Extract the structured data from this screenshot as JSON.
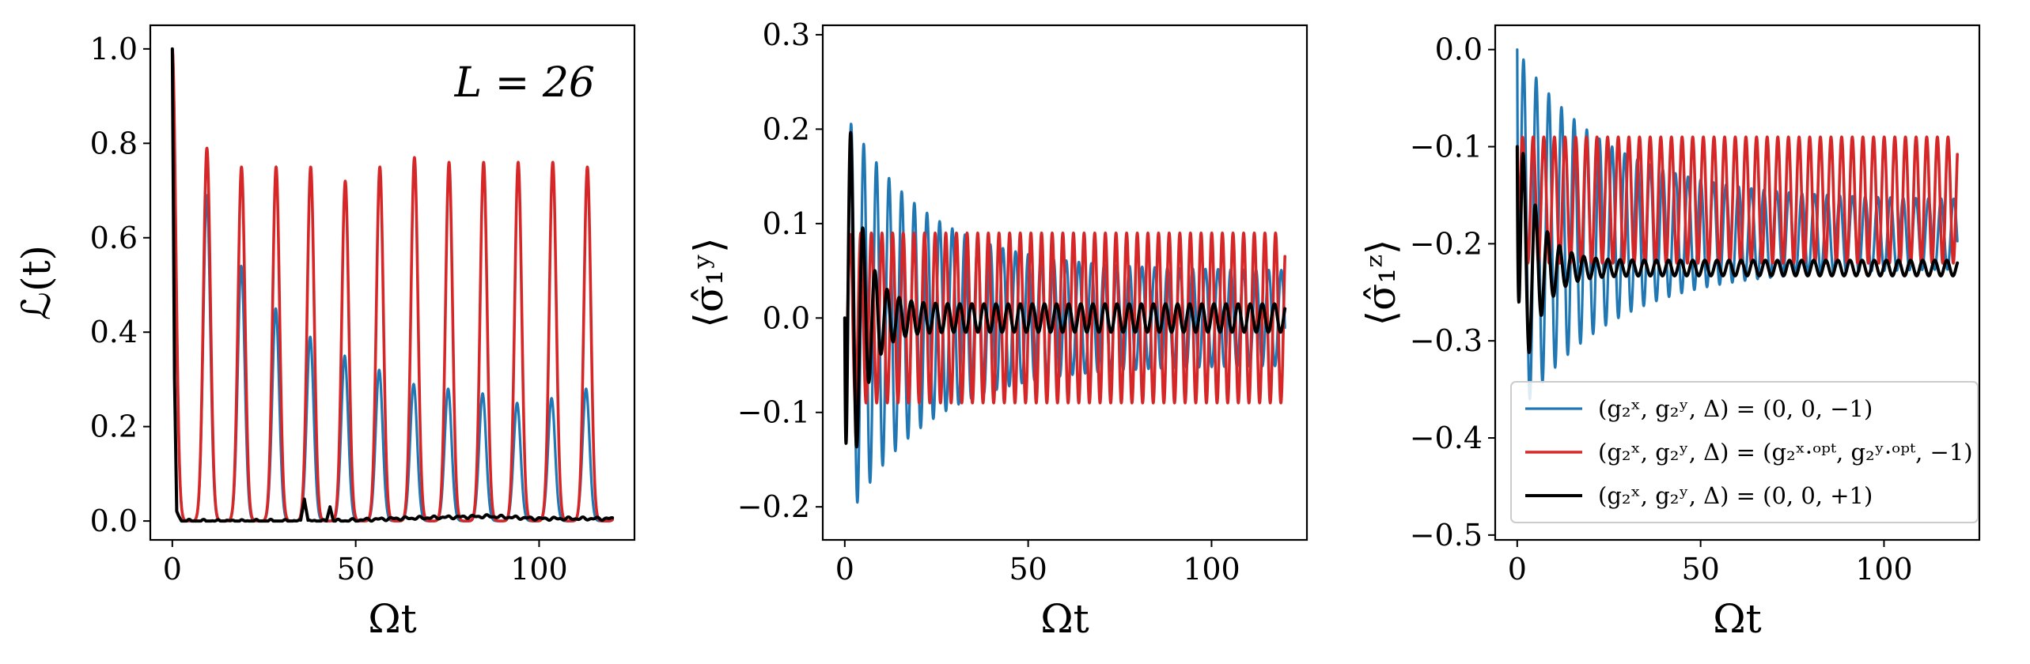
{
  "colors": {
    "blue": "#1f77b4",
    "red": "#d62728",
    "black": "#000000"
  },
  "chart_data": [
    {
      "type": "line",
      "xlabel": "Ωt",
      "ylabel": "ℒ(t)",
      "xlim": [
        -6,
        126
      ],
      "ylim": [
        -0.04,
        1.05
      ],
      "xticks": [
        0,
        50,
        100
      ],
      "xtick_labels": [
        "0",
        "50",
        "100"
      ],
      "yticks": [
        0.0,
        0.2,
        0.4,
        0.6,
        0.8,
        1.0
      ],
      "ytick_labels": [
        "0.0",
        "0.2",
        "0.4",
        "0.6",
        "0.8",
        "1.0"
      ],
      "annotation": "L = 26",
      "grid": false,
      "series": [
        {
          "color": "blue",
          "model": "revivals",
          "x_range": [
            0,
            120
          ],
          "period": 9.4,
          "peaks": [
            1.0,
            0.69,
            0.54,
            0.45,
            0.39,
            0.35,
            0.32,
            0.29,
            0.28,
            0.27,
            0.25,
            0.26,
            0.28,
            0.06
          ]
        },
        {
          "color": "red",
          "model": "revivals",
          "x_range": [
            0,
            120
          ],
          "period": 9.43,
          "peaks": [
            1.0,
            0.79,
            0.75,
            0.75,
            0.75,
            0.72,
            0.75,
            0.77,
            0.76,
            0.76,
            0.76,
            0.76,
            0.75,
            0.11
          ]
        },
        {
          "color": "black",
          "model": "decay",
          "x_range": [
            0,
            120
          ],
          "points": [
            [
              0,
              1.0
            ],
            [
              0.6,
              0.3
            ],
            [
              1.2,
              0.02
            ],
            [
              2.5,
              0.0
            ],
            [
              35,
              0.0
            ],
            [
              36,
              0.05
            ],
            [
              37,
              0.0
            ],
            [
              42,
              0.0
            ],
            [
              43,
              0.03
            ],
            [
              44,
              0.0
            ],
            [
              60,
              0.005
            ],
            [
              86,
              0.01
            ],
            [
              100,
              0.005
            ],
            [
              120,
              0.005
            ]
          ]
        }
      ]
    },
    {
      "type": "line",
      "xlabel": "Ωt",
      "ylabel": "⟨σ̂₁ʸ⟩",
      "xlim": [
        -6,
        126
      ],
      "ylim": [
        -0.235,
        0.31
      ],
      "xticks": [
        0,
        50,
        100
      ],
      "xtick_labels": [
        "0",
        "50",
        "100"
      ],
      "yticks": [
        -0.2,
        -0.1,
        0.0,
        0.1,
        0.2,
        0.3
      ],
      "ytick_labels": [
        "−0.2",
        "−0.1",
        "0.0",
        "0.1",
        "0.2",
        "0.3"
      ],
      "grid": false,
      "series": [
        {
          "color": "blue",
          "model": "damped_oscillation",
          "x_range": [
            0,
            120
          ],
          "offset": 0.0,
          "start": 0.0,
          "period": 3.45,
          "amp_start": 0.22,
          "amp_end": 0.05,
          "decay_time": 22
        },
        {
          "color": "red",
          "model": "damped_oscillation",
          "x_range": [
            0,
            120
          ],
          "offset": 0.0,
          "start": 0.0,
          "period": 2.9,
          "amp_start": 0.09,
          "amp_end": 0.09,
          "decay_time": 1000
        },
        {
          "color": "black",
          "model": "damped_oscillation",
          "x_range": [
            0,
            120
          ],
          "offset": 0.0,
          "start": 0.0,
          "period": 3.3,
          "amp_start": 0.29,
          "amp_end": 0.015,
          "decay_time": 4
        }
      ]
    },
    {
      "type": "line",
      "xlabel": "Ωt",
      "ylabel": "⟨σ̂₁ᶻ⟩",
      "xlim": [
        -6,
        126
      ],
      "ylim": [
        -0.505,
        0.025
      ],
      "xticks": [
        0,
        50,
        100
      ],
      "xtick_labels": [
        "0",
        "50",
        "100"
      ],
      "yticks": [
        0.0,
        -0.1,
        -0.2,
        -0.3,
        -0.4,
        -0.5
      ],
      "ytick_labels": [
        "0.0",
        "−0.1",
        "−0.2",
        "−0.3",
        "−0.4",
        "−0.5"
      ],
      "grid": false,
      "legend": {
        "location": "lower-left",
        "entries": [
          {
            "color": "blue",
            "label": "(g₂ˣ, g₂ʸ, Δ) = (0, 0, −1)"
          },
          {
            "color": "red",
            "label": "(g₂ˣ, g₂ʸ, Δ) = (g₂ˣ·ᵒᵖᵗ, g₂ʸ·ᵒᵖᵗ, −1)"
          },
          {
            "color": "black",
            "label": "(g₂ˣ, g₂ʸ, Δ) = (0, 0, +1)"
          }
        ]
      },
      "series": [
        {
          "color": "blue",
          "model": "damped_oscillation",
          "x_range": [
            0,
            120
          ],
          "offset": -0.19,
          "start": 0.0,
          "period": 3.45,
          "amp_start": 0.19,
          "amp_end": 0.035,
          "decay_time": 25
        },
        {
          "color": "red",
          "model": "damped_oscillation",
          "x_range": [
            0,
            120
          ],
          "offset": -0.155,
          "start": -0.1,
          "period": 2.9,
          "amp_start": 0.065,
          "amp_end": 0.065,
          "decay_time": 1000
        },
        {
          "color": "black",
          "model": "damped_oscillation",
          "x_range": [
            0,
            120
          ],
          "offset": -0.225,
          "start": -0.1,
          "period": 3.3,
          "amp_start": 0.16,
          "amp_end": 0.008,
          "decay_time": 5
        }
      ]
    }
  ]
}
